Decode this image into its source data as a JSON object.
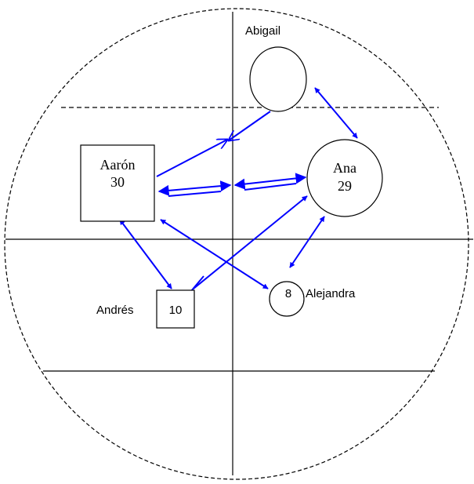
{
  "nodes": [
    {
      "label": "Aarón",
      "age": "30"
    },
    {
      "label": "Ana",
      "age": "29"
    },
    {
      "label": "Abigail"
    },
    {
      "label": "Andrés",
      "age": "10"
    },
    {
      "label": "Alejandra",
      "age": "8"
    }
  ]
}
